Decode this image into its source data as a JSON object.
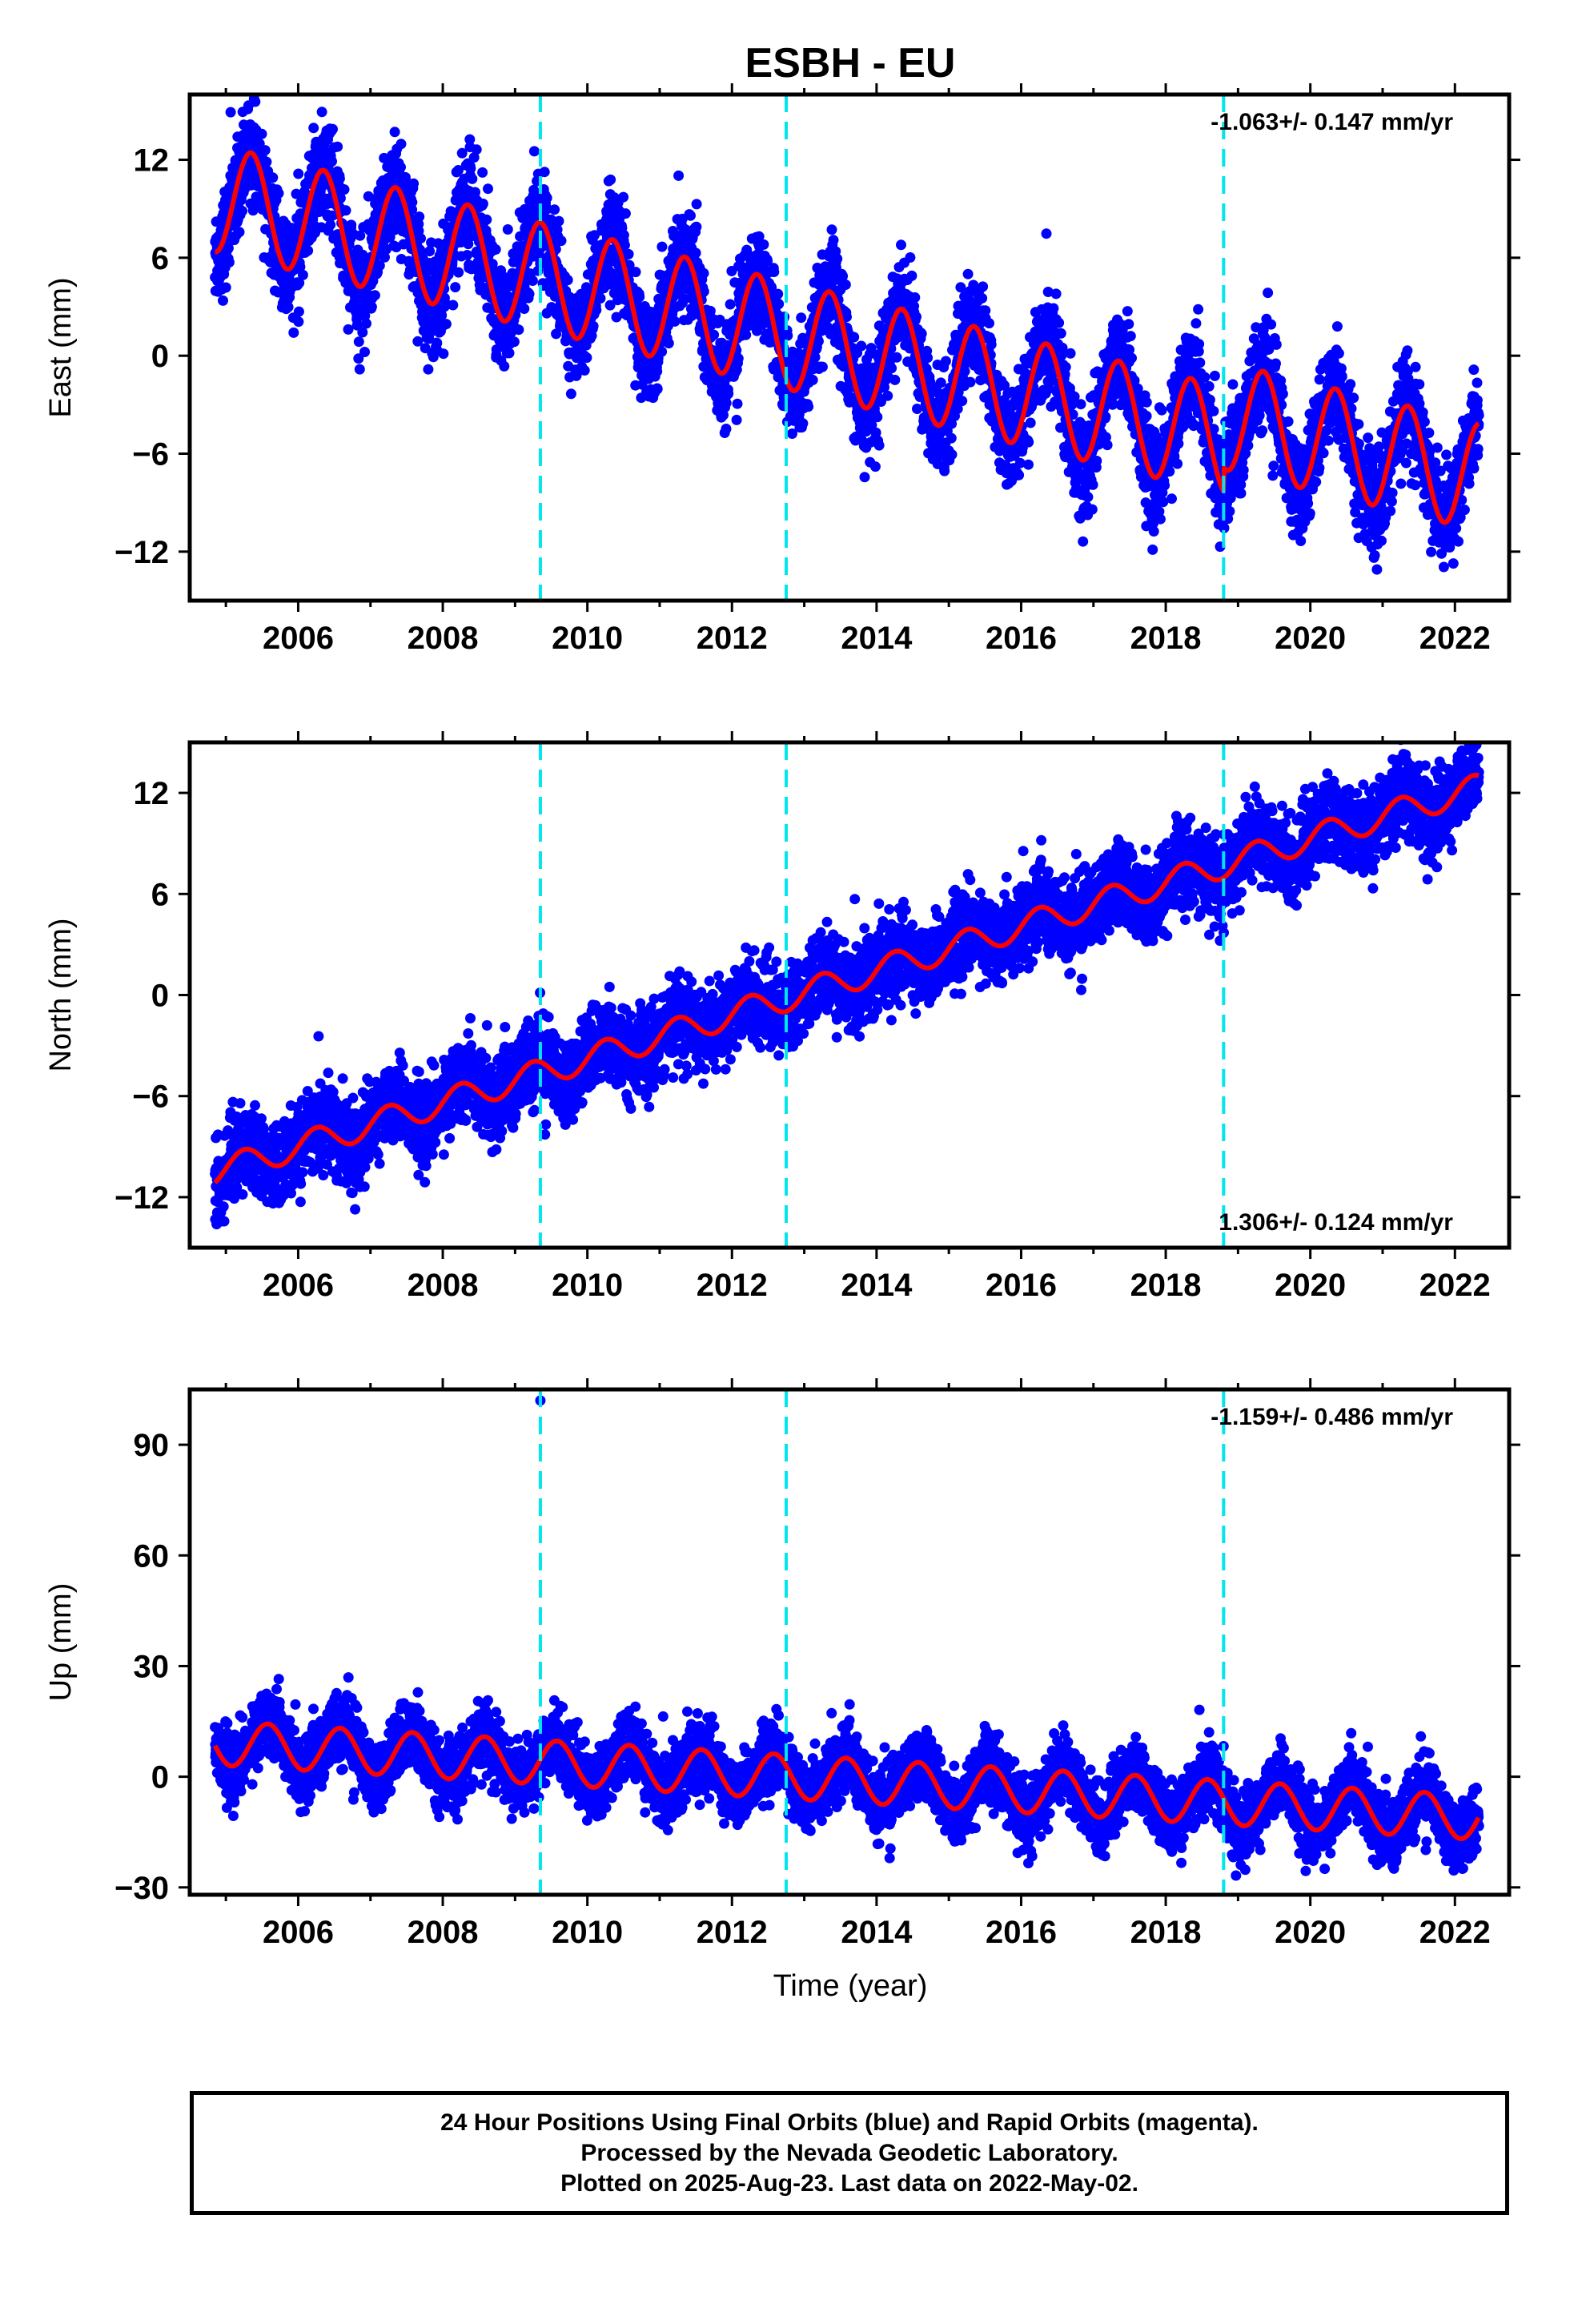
{
  "figure": {
    "title": "ESBH - EU",
    "xlabel": "Time (year)",
    "footer": [
      "24 Hour Positions Using Final Orbits (blue) and Rapid Orbits (magenta).",
      "Processed by the Nevada Geodetic Laboratory.",
      "Plotted on 2025-Aug-23. Last data on 2022-May-02."
    ]
  },
  "colors": {
    "final_orbits": "#0000ff",
    "rapid_orbits": "#ff00ff",
    "model_fit": "#ff0000",
    "equipment_change_lines": "#00e5ee",
    "axes": "#000000"
  },
  "chart_data": [
    {
      "type": "scatter",
      "panel": "east",
      "ylabel": "East (mm)",
      "rate_text": "-1.063+/- 0.147 mm/yr",
      "rate_position": "top-right",
      "xlim": [
        2004.5,
        2022.75
      ],
      "ylim": [
        -15,
        16
      ],
      "xticks": [
        2006,
        2008,
        2010,
        2012,
        2014,
        2016,
        2018,
        2020,
        2022
      ],
      "yticks": [
        -12,
        -6,
        0,
        6,
        12
      ],
      "grid": false,
      "data_range": [
        2004.85,
        2022.33
      ],
      "model": {
        "trend_mm_per_yr": -1.063,
        "value_at_2005": 9.5,
        "seasonal_amplitude": 3.3,
        "peak_fraction": 0.35,
        "offsets": [
          {
            "epoch": 2018.8,
            "value": 1.5
          }
        ]
      },
      "scatter_sd": 1.5,
      "vertical_lines": [
        2009.35,
        2012.75,
        2018.8
      ]
    },
    {
      "type": "scatter",
      "panel": "north",
      "ylabel": "North (mm)",
      "rate_text": "1.306+/- 0.124 mm/yr",
      "rate_position": "bottom-right",
      "xlim": [
        2004.5,
        2022.75
      ],
      "ylim": [
        -15,
        15
      ],
      "xticks": [
        2006,
        2008,
        2010,
        2012,
        2014,
        2016,
        2018,
        2020,
        2022
      ],
      "yticks": [
        -12,
        -6,
        0,
        6,
        12
      ],
      "grid": false,
      "data_range": [
        2004.85,
        2022.33
      ],
      "model": {
        "trend_mm_per_yr": 1.306,
        "value_at_2005": -10.3,
        "seasonal_amplitude": 0.8,
        "peak_fraction": 0.25,
        "offsets": []
      },
      "scatter_sd": 1.2,
      "vertical_lines": [
        2009.35,
        2012.75,
        2018.8
      ]
    },
    {
      "type": "scatter",
      "panel": "up",
      "ylabel": "Up (mm)",
      "rate_text": "-1.159+/- 0.486 mm/yr",
      "rate_position": "top-right",
      "xlim": [
        2004.5,
        2022.75
      ],
      "ylim": [
        -32,
        105
      ],
      "xticks": [
        2006,
        2008,
        2010,
        2012,
        2014,
        2016,
        2018,
        2020,
        2022
      ],
      "yticks": [
        -30,
        0,
        30,
        60,
        90
      ],
      "grid": false,
      "data_range": [
        2004.85,
        2022.33
      ],
      "model": {
        "trend_mm_per_yr": -1.159,
        "value_at_2005": 9.0,
        "seasonal_amplitude": 6.0,
        "peak_fraction": 0.58,
        "offsets": []
      },
      "scatter_sd": 4.5,
      "outliers": [
        {
          "x": 2009.35,
          "y": 102
        }
      ],
      "vertical_lines": [
        2009.35,
        2012.75,
        2018.8
      ]
    }
  ]
}
